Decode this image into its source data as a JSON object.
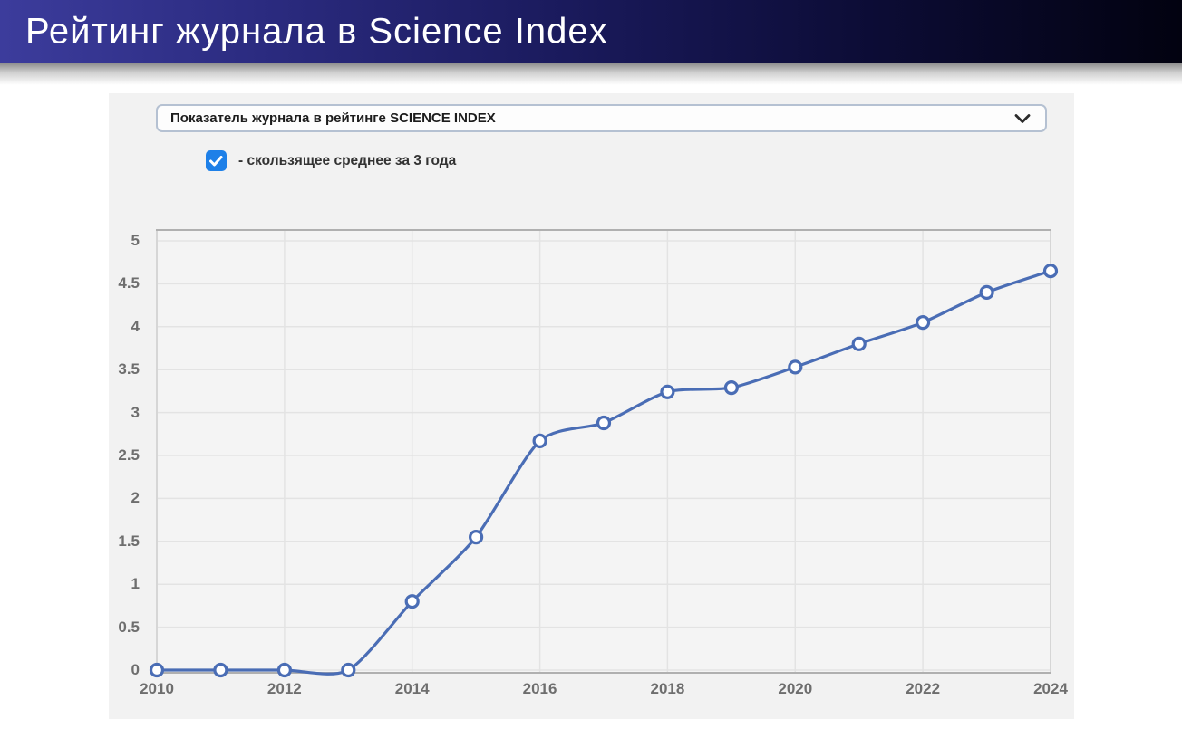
{
  "header": {
    "title": "Рейтинг журнала в Science Index"
  },
  "panel": {
    "dropdown": {
      "value": "Показатель журнала в рейтинге SCIENCE INDEX",
      "chevron_icon": "chevron-down-icon"
    },
    "checkbox": {
      "checked": true,
      "label": "- скользящее среднее за 3 года",
      "color": "#1e80e8",
      "check_icon": "checkmark-icon"
    }
  },
  "chart_data": {
    "type": "line",
    "title": "",
    "x": [
      2010,
      2011,
      2012,
      2013,
      2014,
      2015,
      2016,
      2017,
      2018,
      2019,
      2020,
      2021,
      2022,
      2023,
      2024
    ],
    "series": [
      {
        "name": "скользящее среднее за 3 года",
        "values": [
          0,
          0,
          0,
          0,
          0.8,
          1.55,
          2.67,
          2.88,
          3.24,
          3.29,
          3.53,
          3.8,
          4.05,
          4.4,
          4.65
        ],
        "color": "#4a6db5",
        "marker": "circle",
        "marker_fill": "#ffffff"
      }
    ],
    "xticks": [
      2010,
      2012,
      2014,
      2016,
      2018,
      2020,
      2022,
      2024
    ],
    "yticks": [
      0,
      0.5,
      1,
      1.5,
      2,
      2.5,
      3,
      3.5,
      4,
      4.5,
      5
    ],
    "ylim": [
      0,
      5.15
    ],
    "xlabel": "",
    "ylabel": "",
    "grid": true,
    "legend": "none",
    "plot_bg": "#f4f4f4",
    "grid_color": "#e3e3e3",
    "border_color": "#b0b0b0",
    "tick_color": "#6e6e6e"
  }
}
